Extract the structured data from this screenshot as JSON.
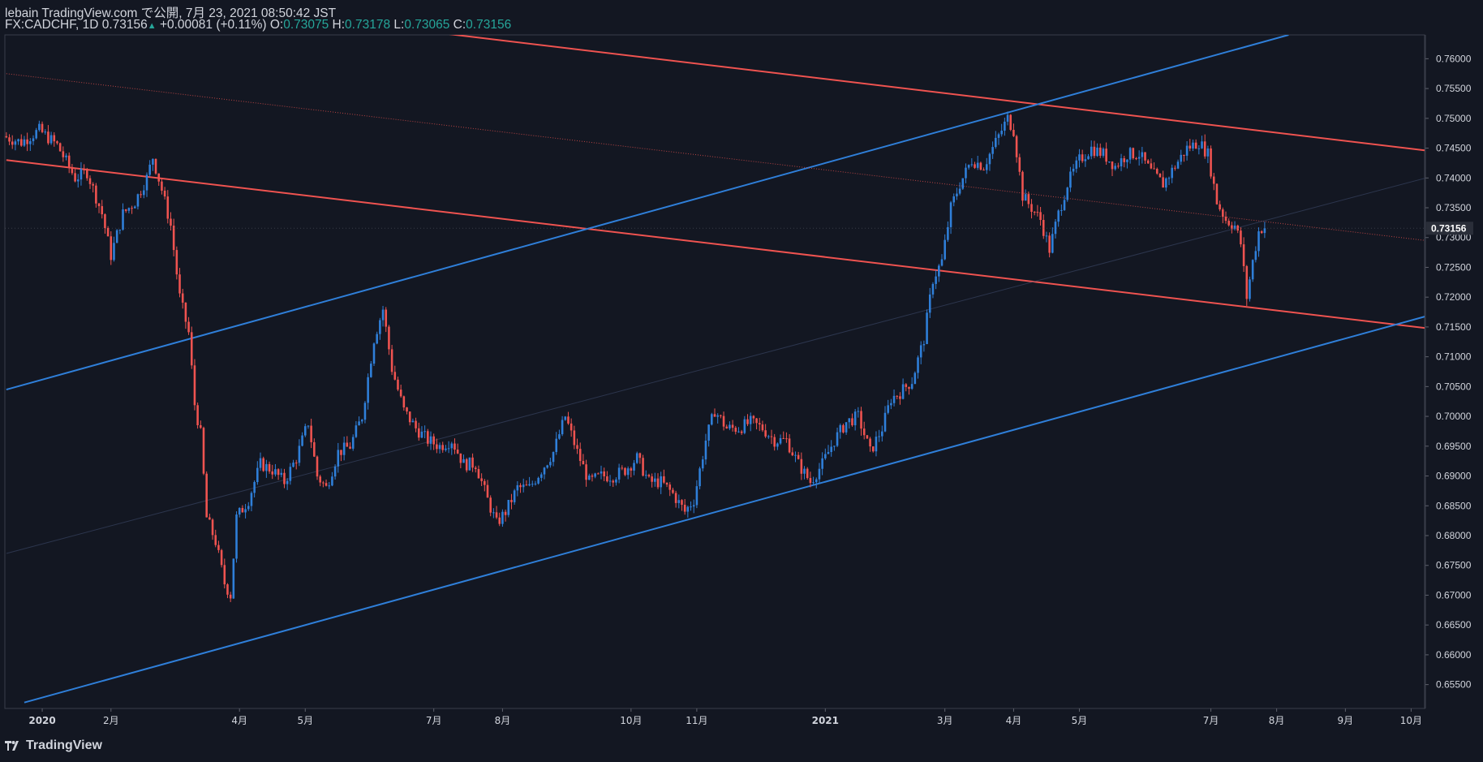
{
  "header": {
    "line1": "lebain TradingView.com で公開, 7月 23, 2021 08:50:42 JST",
    "symbol": "FX:CADCHF, 1D",
    "last": "0.73156",
    "change": "+0.00081 (+0.11%)",
    "o_label": "O:",
    "o": "0.73075",
    "h_label": "H:",
    "h": "0.73178",
    "l_label": "L:",
    "l": "0.73065",
    "c_label": "C:",
    "c": "0.73156"
  },
  "footer": {
    "brand": "TradingView"
  },
  "colors": {
    "bg": "#131722",
    "up": "#2f7fd9",
    "down": "#ef5350",
    "channel_blue": "#2f7fd9",
    "channel_red": "#ef5350",
    "axis_text": "#d1d4dc",
    "price_tag_bg": "#2a2e39"
  },
  "chart_data": {
    "type": "candlestick",
    "y_range": [
      0.651,
      0.764
    ],
    "y_ticks": [
      "0.76000",
      "0.75500",
      "0.75000",
      "0.74500",
      "0.74000",
      "0.73500",
      "0.73000",
      "0.72500",
      "0.72000",
      "0.71500",
      "0.71000",
      "0.70500",
      "0.70000",
      "0.69500",
      "0.69000",
      "0.68500",
      "0.68000",
      "0.67500",
      "0.67000",
      "0.66500",
      "0.66000",
      "0.65500"
    ],
    "x_ticks": [
      {
        "label": "2020",
        "bar": 12
      },
      {
        "label": "2月",
        "bar": 35
      },
      {
        "label": "4月",
        "bar": 78
      },
      {
        "label": "5月",
        "bar": 100
      },
      {
        "label": "7月",
        "bar": 143
      },
      {
        "label": "8月",
        "bar": 166
      },
      {
        "label": "10月",
        "bar": 209
      },
      {
        "label": "11月",
        "bar": 231
      },
      {
        "label": "2021",
        "bar": 274
      },
      {
        "label": "3月",
        "bar": 314
      },
      {
        "label": "4月",
        "bar": 337
      },
      {
        "label": "5月",
        "bar": 359
      },
      {
        "label": "7月",
        "bar": 403
      },
      {
        "label": "8月",
        "bar": 425
      },
      {
        "label": "9月",
        "bar": 448
      },
      {
        "label": "10月",
        "bar": 470
      }
    ],
    "last_price_label": "0.73156",
    "last_price": 0.73156,
    "bars_total": 475,
    "anchors": [
      [
        0,
        0.747
      ],
      [
        6,
        0.746
      ],
      [
        12,
        0.748
      ],
      [
        18,
        0.7455
      ],
      [
        24,
        0.74
      ],
      [
        28,
        0.741
      ],
      [
        33,
        0.734
      ],
      [
        36,
        0.727
      ],
      [
        40,
        0.734
      ],
      [
        44,
        0.736
      ],
      [
        48,
        0.74
      ],
      [
        50,
        0.7435
      ],
      [
        53,
        0.738
      ],
      [
        56,
        0.732
      ],
      [
        59,
        0.72
      ],
      [
        62,
        0.714
      ],
      [
        64,
        0.702
      ],
      [
        66,
        0.697
      ],
      [
        68,
        0.683
      ],
      [
        71,
        0.679
      ],
      [
        74,
        0.672
      ],
      [
        76,
        0.67
      ],
      [
        78,
        0.683
      ],
      [
        82,
        0.686
      ],
      [
        86,
        0.692
      ],
      [
        90,
        0.691
      ],
      [
        94,
        0.689
      ],
      [
        98,
        0.693
      ],
      [
        102,
        0.699
      ],
      [
        105,
        0.69
      ],
      [
        108,
        0.688
      ],
      [
        112,
        0.694
      ],
      [
        116,
        0.695
      ],
      [
        120,
        0.7
      ],
      [
        124,
        0.713
      ],
      [
        127,
        0.718
      ],
      [
        130,
        0.708
      ],
      [
        134,
        0.701
      ],
      [
        138,
        0.698
      ],
      [
        142,
        0.696
      ],
      [
        146,
        0.695
      ],
      [
        150,
        0.696
      ],
      [
        154,
        0.692
      ],
      [
        158,
        0.692
      ],
      [
        162,
        0.686
      ],
      [
        165,
        0.682
      ],
      [
        168,
        0.684
      ],
      [
        172,
        0.688
      ],
      [
        176,
        0.688
      ],
      [
        180,
        0.691
      ],
      [
        184,
        0.694
      ],
      [
        188,
        0.7
      ],
      [
        192,
        0.694
      ],
      [
        196,
        0.689
      ],
      [
        200,
        0.69
      ],
      [
        204,
        0.69
      ],
      [
        208,
        0.691
      ],
      [
        212,
        0.693
      ],
      [
        216,
        0.689
      ],
      [
        220,
        0.689
      ],
      [
        224,
        0.687
      ],
      [
        228,
        0.684
      ],
      [
        231,
        0.686
      ],
      [
        235,
        0.696
      ],
      [
        238,
        0.701
      ],
      [
        242,
        0.698
      ],
      [
        246,
        0.698
      ],
      [
        250,
        0.699
      ],
      [
        254,
        0.698
      ],
      [
        258,
        0.696
      ],
      [
        262,
        0.696
      ],
      [
        266,
        0.692
      ],
      [
        270,
        0.689
      ],
      [
        274,
        0.692
      ],
      [
        278,
        0.696
      ],
      [
        282,
        0.699
      ],
      [
        286,
        0.7
      ],
      [
        290,
        0.694
      ],
      [
        294,
        0.698
      ],
      [
        297,
        0.703
      ],
      [
        300,
        0.704
      ],
      [
        304,
        0.706
      ],
      [
        308,
        0.713
      ],
      [
        311,
        0.723
      ],
      [
        314,
        0.726
      ],
      [
        317,
        0.735
      ],
      [
        320,
        0.739
      ],
      [
        324,
        0.743
      ],
      [
        328,
        0.742
      ],
      [
        332,
        0.746
      ],
      [
        336,
        0.75
      ],
      [
        338,
        0.748
      ],
      [
        341,
        0.737
      ],
      [
        344,
        0.735
      ],
      [
        347,
        0.733
      ],
      [
        350,
        0.728
      ],
      [
        353,
        0.734
      ],
      [
        356,
        0.739
      ],
      [
        360,
        0.743
      ],
      [
        364,
        0.745
      ],
      [
        368,
        0.744
      ],
      [
        372,
        0.742
      ],
      [
        376,
        0.744
      ],
      [
        380,
        0.744
      ],
      [
        384,
        0.741
      ],
      [
        388,
        0.739
      ],
      [
        392,
        0.742
      ],
      [
        396,
        0.745
      ],
      [
        400,
        0.746
      ],
      [
        403,
        0.744
      ],
      [
        406,
        0.736
      ],
      [
        409,
        0.733
      ],
      [
        412,
        0.732
      ],
      [
        414,
        0.729
      ],
      [
        416,
        0.72
      ],
      [
        418,
        0.726
      ],
      [
        420,
        0.731
      ],
      [
        421,
        0.73156
      ]
    ],
    "channel_lines": [
      {
        "color": "red",
        "p1": [
          0,
          0.743
        ],
        "p2": [
          475,
          0.7148
        ]
      },
      {
        "color": "red",
        "p1": [
          142,
          0.7645
        ],
        "p2": [
          475,
          0.7446
        ]
      },
      {
        "color": "blue",
        "p1": [
          0,
          0.7045
        ],
        "p2": [
          429,
          0.764
        ]
      },
      {
        "color": "blue",
        "p1": [
          6,
          0.652
        ],
        "p2": [
          475,
          0.7168
        ]
      },
      {
        "color": "red-dotted",
        "p1": [
          0,
          0.7575
        ],
        "p2": [
          475,
          0.7295
        ]
      },
      {
        "color": "faint",
        "p1": [
          0,
          0.677
        ],
        "p2": [
          475,
          0.74
        ]
      }
    ]
  }
}
